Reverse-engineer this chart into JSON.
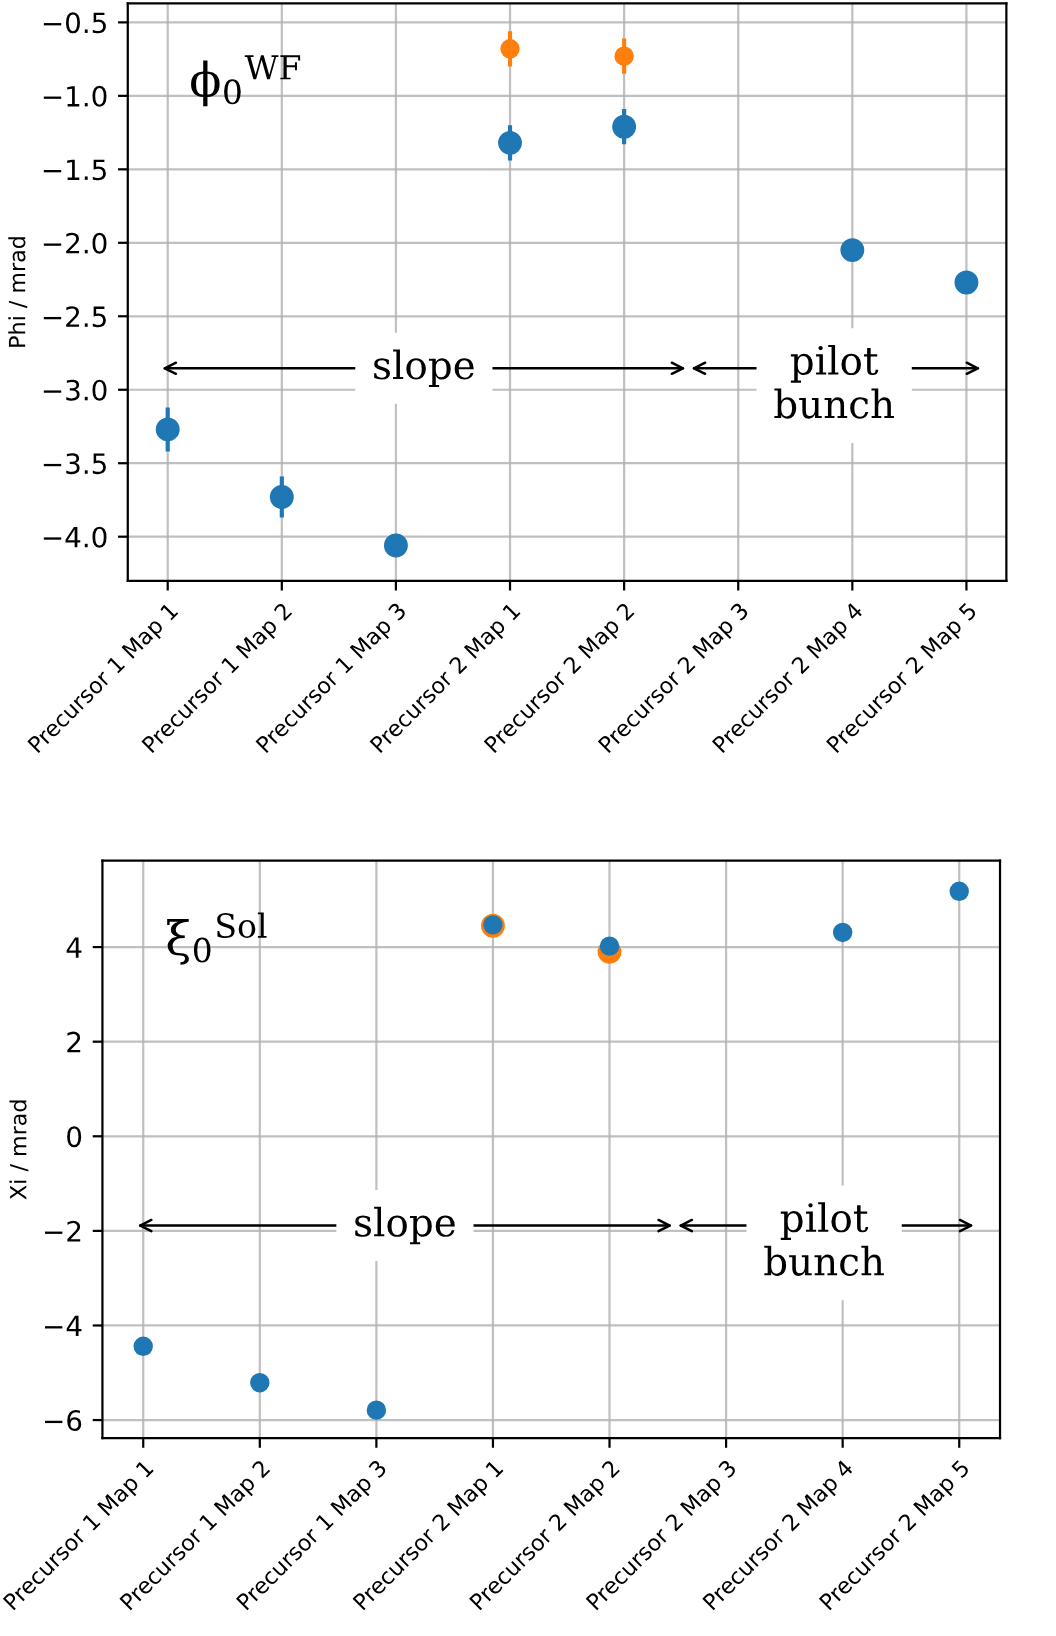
{
  "chart_data": [
    {
      "type": "scatter",
      "ylabel": "Phi / mrad",
      "categories": [
        "Precursor 1 Map 1",
        "Precursor 1 Map 2",
        "Precursor 1 Map 3",
        "Precursor 2 Map 1",
        "Precursor 2 Map 2",
        "Precursor 2 Map 3",
        "Precursor 2 Map 4",
        "Precursor 2 Map 5"
      ],
      "series": [
        {
          "color": "#1f77b4",
          "values": [
            -3.27,
            -3.73,
            -4.06,
            -1.32,
            -1.21,
            null,
            -2.05,
            -2.27
          ],
          "errors": [
            0.15,
            0.14,
            null,
            0.12,
            0.12,
            null,
            null,
            null
          ]
        },
        {
          "color": "#ff7f0e",
          "values": [
            null,
            null,
            null,
            -0.68,
            -0.73,
            null,
            null,
            null
          ],
          "errors": [
            null,
            null,
            null,
            0.12,
            0.12,
            null,
            null,
            null
          ]
        }
      ],
      "ylim": [
        -4.3,
        -0.37
      ],
      "yticks": [
        {
          "value": -4,
          "label": "−4.0"
        },
        -3.5,
        {
          "value": -3,
          "label": "−3.0"
        },
        -2.5,
        {
          "value": -2,
          "label": "−2.0"
        },
        -1.5,
        {
          "value": -1,
          "label": "−1.0"
        },
        -0.5
      ],
      "grid": true,
      "marker": "circle",
      "annotations": [
        "ϕ$_{0}$$^{WF}$",
        "slope",
        "pilot\nbunch"
      ]
    },
    {
      "type": "scatter",
      "ylabel": "Xi / mrad",
      "categories": [
        "Precursor 1 Map 1",
        "Precursor 1 Map 2",
        "Precursor 1 Map 3",
        "Precursor 2 Map 1",
        "Precursor 2 Map 2",
        "Precursor 2 Map 3",
        "Precursor 2 Map 4",
        "Precursor 2 Map 5"
      ],
      "series": [
        {
          "color": "#ff7f0e",
          "values": [
            null,
            null,
            null,
            4.45,
            3.9,
            null,
            null,
            null
          ]
        },
        {
          "color": "#1f77b4",
          "values": [
            -4.44,
            -5.21,
            -5.79,
            4.47,
            4.02,
            null,
            4.31,
            5.18
          ]
        }
      ],
      "ylim": [
        -6.38,
        5.83
      ],
      "yticks": [
        -6,
        -4,
        -2,
        0,
        2,
        4
      ],
      "grid": true,
      "marker": "circle",
      "annotations": [
        "ξ$_{0}$$^{Sol}$",
        "slope",
        "pilot\nbunch"
      ]
    }
  ]
}
